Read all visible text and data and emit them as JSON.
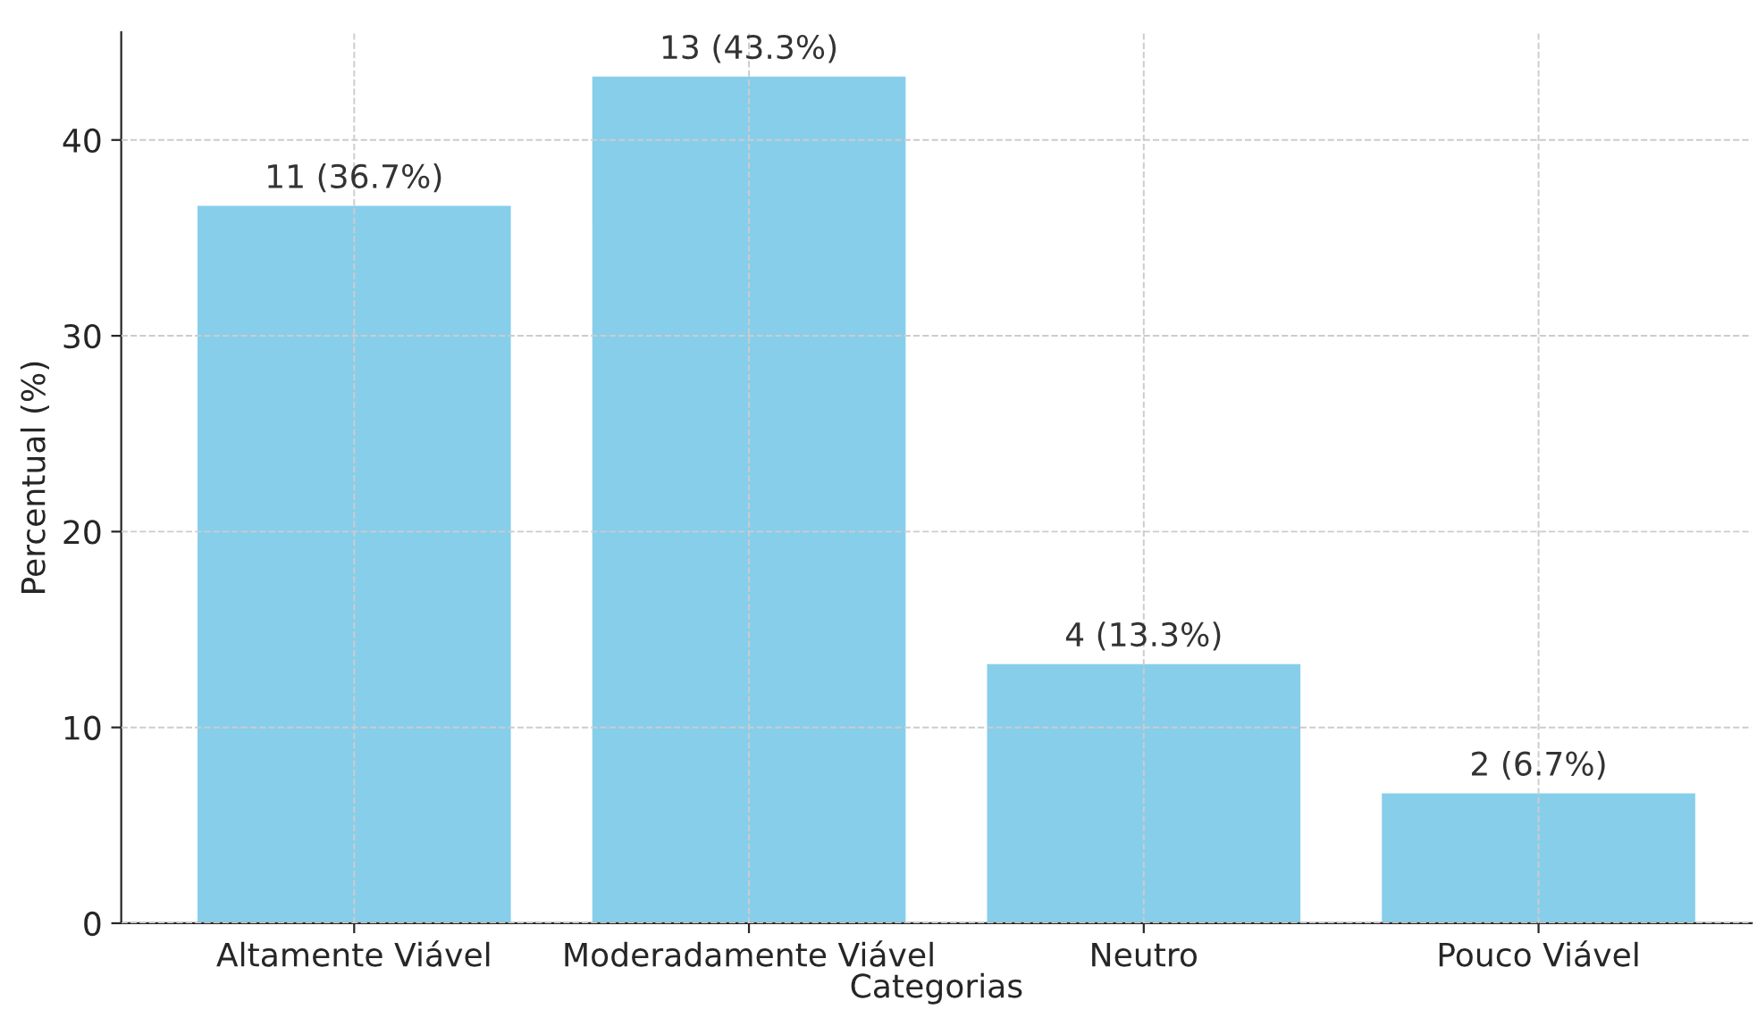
{
  "chart_data": {
    "type": "bar",
    "xlabel": "Categorias",
    "ylabel": "Percentual (%)",
    "categories": [
      "Altamente Viável",
      "Moderadamente Viável",
      "Neutro",
      "Pouco Viável"
    ],
    "values": [
      36.7,
      43.3,
      13.3,
      6.7
    ],
    "value_labels": [
      "11 (36.7%)",
      "13 (43.3%)",
      "4 (13.3%)",
      "2 (6.7%)"
    ],
    "color": "#87ceeb",
    "ylim": [
      0,
      45.5
    ],
    "yticks": [
      0,
      10,
      20,
      30,
      40
    ],
    "grid": true
  }
}
